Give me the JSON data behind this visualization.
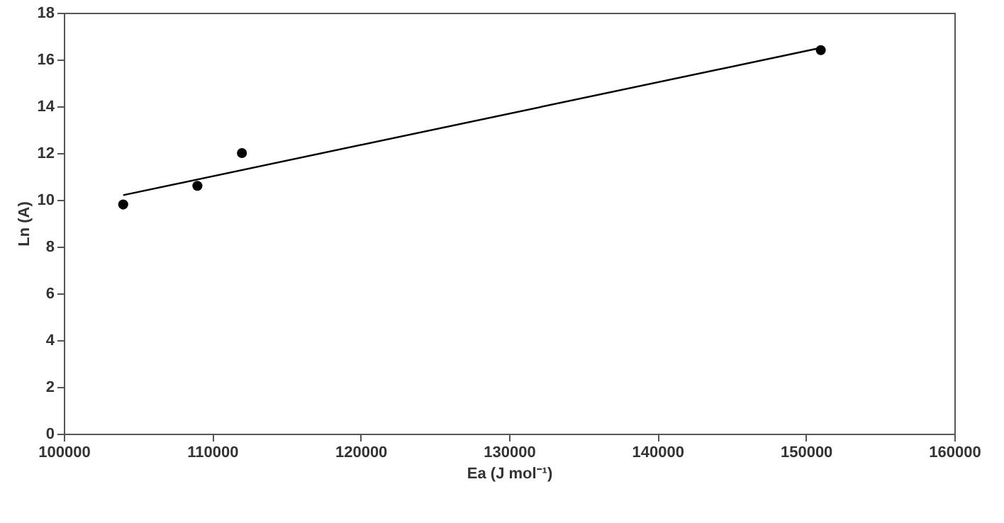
{
  "chart_data": {
    "type": "scatter",
    "xlabel": "Ea (J mol⁻¹)",
    "ylabel": "Ln (A)",
    "xlim": [
      100000,
      160000
    ],
    "xticks": [
      100000,
      110000,
      120000,
      130000,
      140000,
      150000,
      160000
    ],
    "ylim": [
      0,
      18
    ],
    "yticks": [
      0,
      2,
      4,
      6,
      8,
      10,
      12,
      14,
      16,
      18
    ],
    "grid": false,
    "series": [
      {
        "color": "#000000",
        "marker": "circle",
        "x": [
          104000,
          109000,
          112000,
          151000
        ],
        "values": [
          9.8,
          10.6,
          12.0,
          16.4
        ]
      },
      {
        "type": "line",
        "color": "#000000",
        "marker": "none",
        "x": [
          104000,
          151000
        ],
        "values": [
          10.2,
          16.5
        ]
      }
    ]
  }
}
